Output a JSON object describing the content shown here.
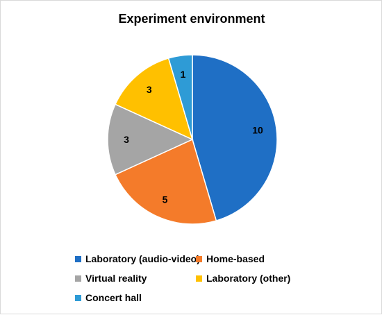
{
  "chart_data": {
    "type": "pie",
    "title": "Experiment environment",
    "categories": [
      "Laboratory (audio-video)",
      "Home-based",
      "Virtual reality",
      "Laboratory (other)",
      "Concert hall"
    ],
    "values": [
      10,
      5,
      3,
      3,
      1
    ],
    "colors": [
      "#1f6fc5",
      "#f47b2a",
      "#a5a5a5",
      "#ffc000",
      "#2e9bd6"
    ],
    "start_angle_deg": 0,
    "direction": "clockwise",
    "data_labels": [
      "10",
      "5",
      "3",
      "3",
      "1"
    ],
    "legend_position": "bottom"
  }
}
